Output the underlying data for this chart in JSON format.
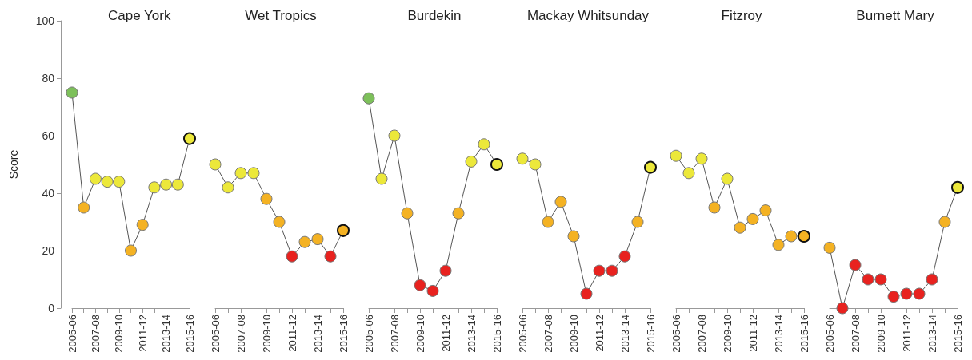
{
  "chart_data": [
    {
      "type": "line",
      "title": "Cape York",
      "ylabel": "Score",
      "categories": [
        "2005-06",
        null,
        "2007-08",
        null,
        "2009-10",
        null,
        "2011-12",
        null,
        "2013-14",
        null,
        "2015-16"
      ],
      "values": [
        75,
        35,
        45,
        44,
        44,
        20,
        29,
        42,
        43,
        43,
        59
      ],
      "colors": [
        "#7dc05a",
        "#f4b223",
        "#ece83a",
        "#ece83a",
        "#ece83a",
        "#f4b223",
        "#f4b223",
        "#ece83a",
        "#ece83a",
        "#ece83a",
        "#ece83a"
      ],
      "ylim": [
        0,
        100
      ],
      "yticks": [
        0,
        20,
        40,
        60,
        80,
        100
      ],
      "grid": false,
      "marker": "circle"
    },
    {
      "type": "line",
      "title": "Wet Tropics",
      "categories": [
        "2005-06",
        null,
        "2007-08",
        null,
        "2009-10",
        null,
        "2011-12",
        null,
        "2013-14",
        null,
        "2015-16"
      ],
      "values": [
        50,
        42,
        47,
        47,
        38,
        30,
        18,
        23,
        24,
        18,
        27
      ],
      "colors": [
        "#ece83a",
        "#ece83a",
        "#ece83a",
        "#ece83a",
        "#f4b223",
        "#f4b223",
        "#e8221f",
        "#f4b223",
        "#f4b223",
        "#e8221f",
        "#f4b223"
      ],
      "ylim": [
        0,
        100
      ],
      "yticks": [
        0,
        20,
        40,
        60,
        80,
        100
      ],
      "tick_labels": "x",
      "grid": false,
      "marker": "circle"
    },
    {
      "type": "line",
      "title": "Burdekin",
      "categories": [
        "2005-06",
        null,
        "2007-08",
        null,
        "2009-10",
        null,
        "2011-12",
        null,
        "2013-14",
        null,
        "2015-16"
      ],
      "values": [
        73,
        45,
        60,
        33,
        8,
        6,
        13,
        33,
        51,
        57,
        50
      ],
      "colors": [
        "#7dc05a",
        "#ece83a",
        "#ece83a",
        "#f4b223",
        "#e8221f",
        "#e8221f",
        "#e8221f",
        "#f4b223",
        "#ece83a",
        "#ece83a",
        "#ece83a"
      ],
      "ylim": [
        0,
        100
      ],
      "yticks": [
        0,
        20,
        40,
        60,
        80,
        100
      ],
      "tick_labels": "x",
      "grid": false,
      "marker": "circle"
    },
    {
      "type": "line",
      "title": "Mackay Whitsunday",
      "categories": [
        "2005-06",
        null,
        "2007-08",
        null,
        "2009-10",
        null,
        "2011-12",
        null,
        "2013-14",
        null,
        "2015-16"
      ],
      "values": [
        52,
        50,
        30,
        37,
        25,
        5,
        13,
        13,
        18,
        30,
        49
      ],
      "colors": [
        "#ece83a",
        "#ece83a",
        "#f4b223",
        "#f4b223",
        "#f4b223",
        "#e8221f",
        "#e8221f",
        "#e8221f",
        "#e8221f",
        "#f4b223",
        "#ece83a"
      ],
      "ylim": [
        0,
        100
      ],
      "yticks": [
        0,
        20,
        40,
        60,
        80,
        100
      ],
      "tick_labels": "x",
      "grid": false,
      "marker": "circle"
    },
    {
      "type": "line",
      "title": "Fitzroy",
      "categories": [
        "2005-06",
        null,
        "2007-08",
        null,
        "2009-10",
        null,
        "2011-12",
        null,
        "2013-14",
        null,
        "2015-16"
      ],
      "values": [
        53,
        47,
        52,
        35,
        45,
        28,
        31,
        34,
        22,
        25,
        25
      ],
      "colors": [
        "#ece83a",
        "#ece83a",
        "#ece83a",
        "#f4b223",
        "#ece83a",
        "#f4b223",
        "#f4b223",
        "#f4b223",
        "#f4b223",
        "#f4b223",
        "#f4b223"
      ],
      "ylim": [
        0,
        100
      ],
      "yticks": [
        0,
        20,
        40,
        60,
        80,
        100
      ],
      "tick_labels": "x",
      "grid": false,
      "marker": "circle"
    },
    {
      "type": "line",
      "title": "Burnett Mary",
      "categories": [
        "2005-06",
        null,
        "2007-08",
        null,
        "2009-10",
        null,
        "2011-12",
        null,
        "2013-14",
        null,
        "2015-16"
      ],
      "values": [
        21,
        0,
        15,
        10,
        10,
        4,
        5,
        5,
        10,
        30,
        42
      ],
      "colors": [
        "#f4b223",
        "#e8221f",
        "#e8221f",
        "#e8221f",
        "#e8221f",
        "#e8221f",
        "#e8221f",
        "#e8221f",
        "#e8221f",
        "#f4b223",
        "#ece83a"
      ],
      "ylim": [
        0,
        100
      ],
      "yticks": [
        0,
        20,
        40,
        60,
        80,
        100
      ],
      "tick_labels": "x",
      "grid": false,
      "marker": "circle"
    }
  ]
}
